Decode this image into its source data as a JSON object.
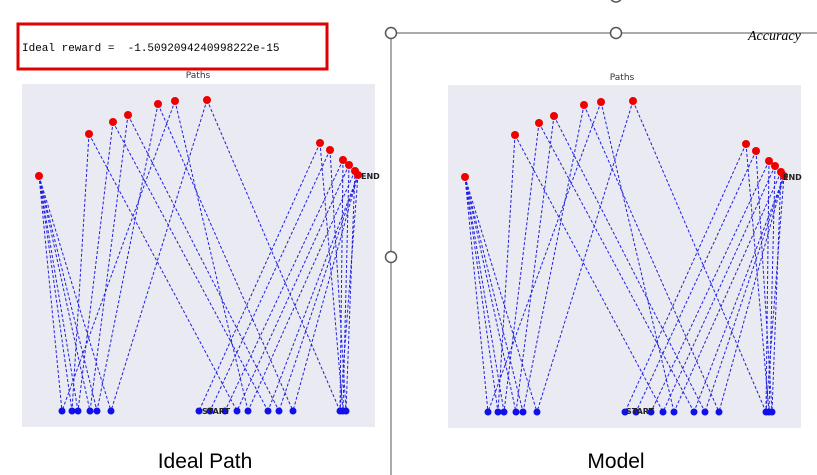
{
  "status_text": "Ideal reward =  -1.5092094240998222e-15",
  "corner_text": "Accuracy",
  "plots": [
    {
      "title": "Paths",
      "start_label": "START",
      "end_label": "END",
      "caption": "Ideal Path"
    },
    {
      "title": "Paths",
      "start_label": "START",
      "end_label": "END",
      "caption": "Model"
    }
  ]
}
